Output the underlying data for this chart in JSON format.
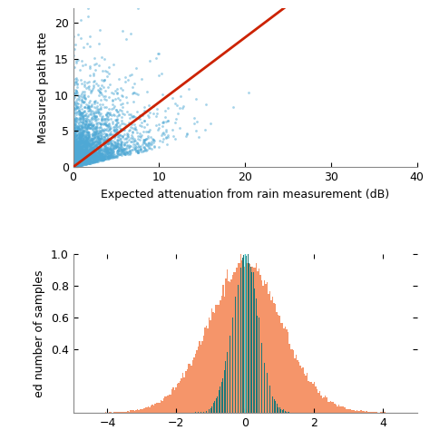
{
  "scatter_xlim": [
    0,
    40
  ],
  "scatter_ylim": [
    0,
    22
  ],
  "scatter_xlabel": "Expected attenuation from rain measurement (dB)",
  "scatter_ylabel": "Measured path atte",
  "scatter_xticks": [
    0,
    10,
    20,
    30,
    40
  ],
  "scatter_yticks": [
    0,
    5,
    10,
    15,
    20
  ],
  "scatter_dot_color": "#4ea8d5",
  "scatter_line_color": "#cc2200",
  "scatter_line_slope": 0.9,
  "scatter_n_points": 3000,
  "hist_ylabel": "ed number of samples",
  "hist_color_orange": "#f5956a",
  "hist_color_teal": "#1e7878",
  "hist_ylim": [
    0,
    1
  ],
  "hist_yticks": [
    0.4,
    0.6,
    0.8,
    1.0
  ],
  "hist_xlim": [
    -5,
    5
  ],
  "background_color": "#ffffff",
  "fig_width": 4.74,
  "fig_height": 4.74
}
